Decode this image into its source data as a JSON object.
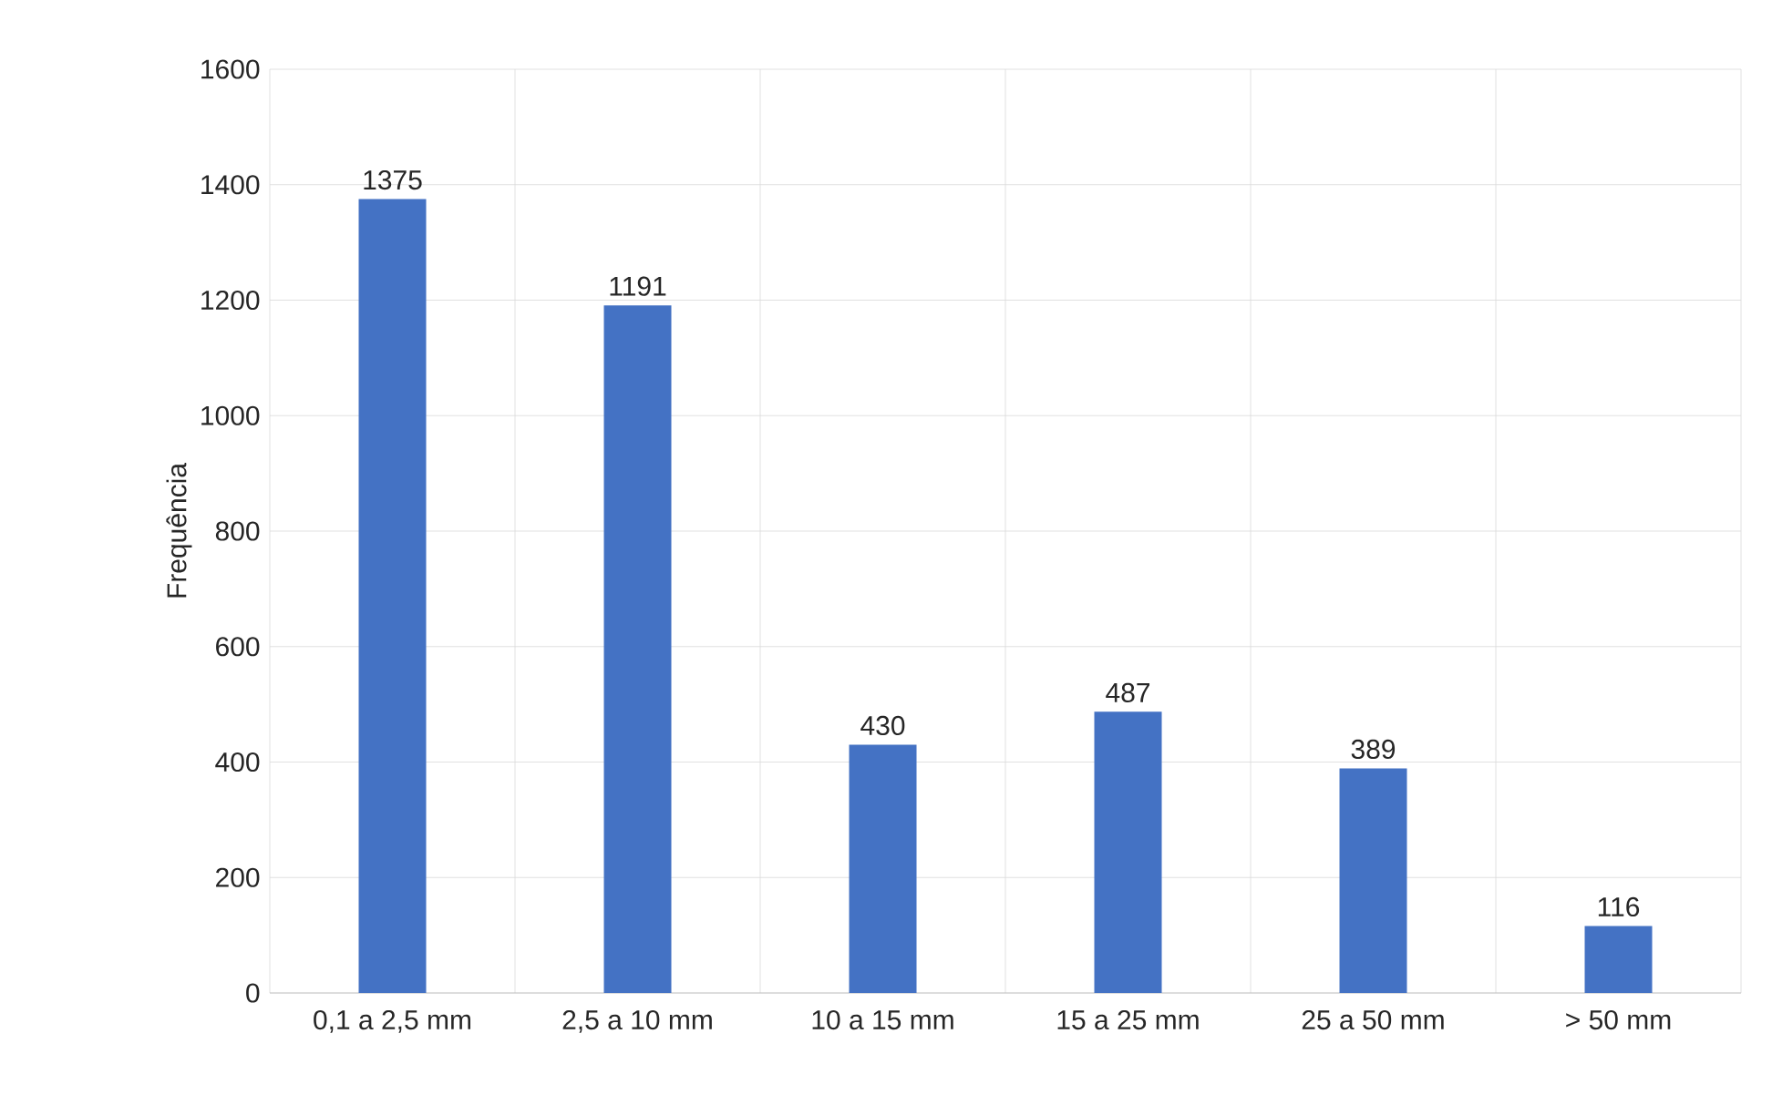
{
  "chart_data": {
    "type": "bar",
    "ylabel": "Frequência",
    "categories": [
      "0,1 a 2,5 mm",
      "2,5 a 10 mm",
      "10 a 15 mm",
      "15 a 25 mm",
      "25 a 50 mm",
      "> 50 mm"
    ],
    "values": [
      1375,
      1191,
      430,
      487,
      389,
      116
    ],
    "color": "#4472c4",
    "ylim": [
      0,
      1600
    ],
    "yticks": [
      0,
      200,
      400,
      600,
      800,
      1000,
      1200,
      1400,
      1600
    ],
    "grid": true,
    "data_labels": true
  }
}
